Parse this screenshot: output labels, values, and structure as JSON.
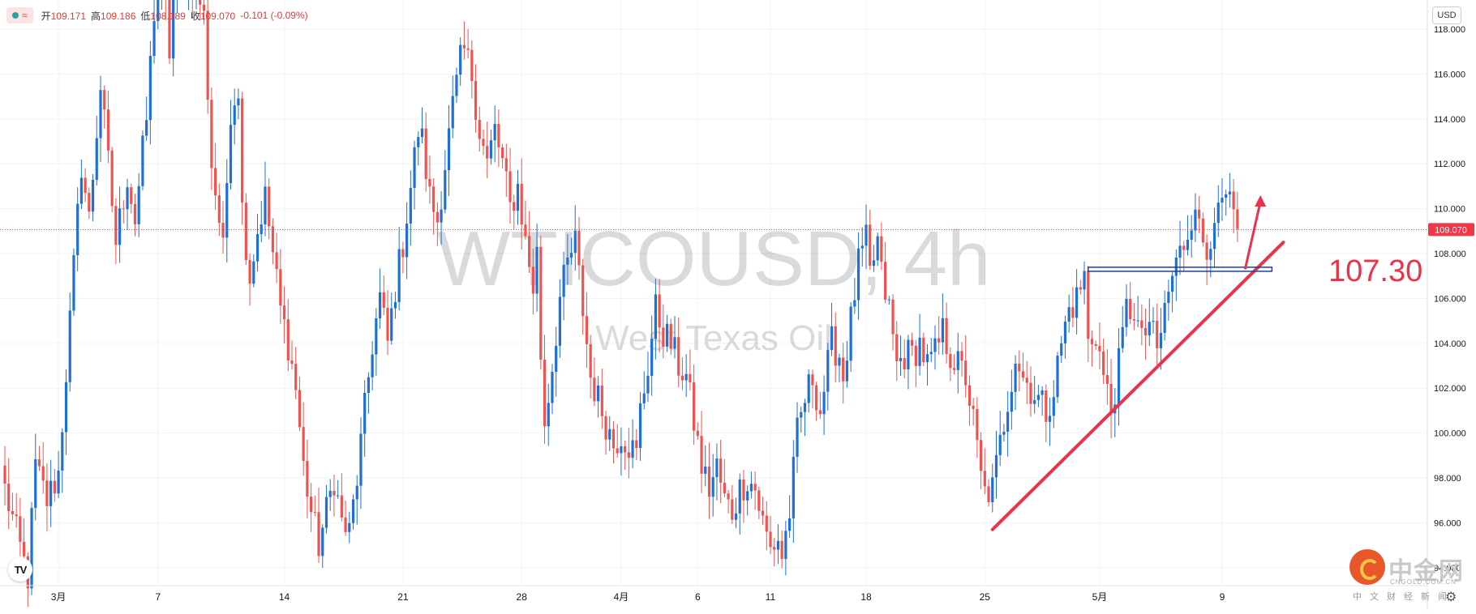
{
  "legend": {
    "open_label": "开",
    "open": "109.171",
    "high_label": "高",
    "high": "109.186",
    "low_label": "低",
    "low": "108.189",
    "close_label": "收",
    "close": "109.070",
    "change": "-0.101 (-0.09%)"
  },
  "currency": "USD",
  "watermark": {
    "symbol": "WTICOUSD, 4h",
    "name": "West Texas Oil"
  },
  "price_tag": "109.070",
  "annotation": {
    "level": "107.30"
  },
  "brand": {
    "name": "中金网",
    "domain": "CNGOLD.COM.CN",
    "tagline": "中文财经新闻"
  },
  "colors": {
    "up": "#1e6fd6",
    "down": "#ef5350",
    "trendline": "#e8334a",
    "level_line": "#1f3f99",
    "price_tag": "#f23645",
    "grid": "#f0f3fa"
  },
  "icons": {
    "toggle": "wave-icon",
    "logo": "tradingview-logo-icon",
    "settings": "gear-icon"
  },
  "chart_data": {
    "type": "candlestick",
    "title": "WTICOUSD, 4h",
    "subtitle": "West Texas Oil",
    "ylim": [
      93.2,
      119.3
    ],
    "y_ticks": [
      94,
      96,
      98,
      100,
      102,
      104,
      106,
      108,
      110,
      112,
      114,
      116,
      118
    ],
    "x_ticks": [
      {
        "label": "3月",
        "bar": 14
      },
      {
        "label": "7",
        "bar": 40
      },
      {
        "label": "14",
        "bar": 73
      },
      {
        "label": "21",
        "bar": 104
      },
      {
        "label": "28",
        "bar": 135
      },
      {
        "label": "4月",
        "bar": 161
      },
      {
        "label": "6",
        "bar": 181
      },
      {
        "label": "11",
        "bar": 200
      },
      {
        "label": "18",
        "bar": 225
      },
      {
        "label": "25",
        "bar": 256
      },
      {
        "label": "5月",
        "bar": 286
      },
      {
        "label": "9",
        "bar": 318
      }
    ],
    "last_price": 109.07,
    "support_level": 107.3,
    "trendline": [
      {
        "bar": 258,
        "price": 95.7
      },
      {
        "bar": 334,
        "price": 108.5
      }
    ],
    "level_line_bars": [
      283,
      331
    ],
    "projection_arrow": [
      {
        "bar": 324,
        "price": 107.3
      },
      {
        "bar": 328,
        "price": 110.6
      }
    ],
    "anchors": [
      [
        0,
        97.5
      ],
      [
        3,
        95.5
      ],
      [
        6,
        93.6
      ],
      [
        8,
        98.5
      ],
      [
        11,
        97.0
      ],
      [
        14,
        98.2
      ],
      [
        17,
        105.0
      ],
      [
        20,
        112.0
      ],
      [
        22,
        109.5
      ],
      [
        25,
        115.5
      ],
      [
        27,
        112.0
      ],
      [
        29,
        108.5
      ],
      [
        32,
        111.5
      ],
      [
        34,
        109.5
      ],
      [
        37,
        114.0
      ],
      [
        39,
        118.8
      ],
      [
        41,
        121.0
      ],
      [
        43,
        117.0
      ],
      [
        45,
        121.5
      ],
      [
        47,
        120.5
      ],
      [
        50,
        120.0
      ],
      [
        52,
        118.5
      ],
      [
        54,
        112.0
      ],
      [
        56,
        109.5
      ],
      [
        57,
        108.0
      ],
      [
        59,
        114.5
      ],
      [
        61,
        115.5
      ],
      [
        62,
        110.0
      ],
      [
        64,
        107.0
      ],
      [
        66,
        109.0
      ],
      [
        68,
        110.5
      ],
      [
        70,
        108.0
      ],
      [
        72,
        105.5
      ],
      [
        74,
        104.0
      ],
      [
        76,
        102.0
      ],
      [
        78,
        98.5
      ],
      [
        80,
        96.5
      ],
      [
        82,
        95.0
      ],
      [
        84,
        96.5
      ],
      [
        86,
        98.0
      ],
      [
        88,
        96.0
      ],
      [
        90,
        95.5
      ],
      [
        92,
        98.0
      ],
      [
        94,
        101.0
      ],
      [
        96,
        104.0
      ],
      [
        98,
        106.0
      ],
      [
        100,
        104.0
      ],
      [
        102,
        106.5
      ],
      [
        104,
        108.5
      ],
      [
        106,
        111.0
      ],
      [
        108,
        113.5
      ],
      [
        109,
        113.0
      ],
      [
        111,
        110.5
      ],
      [
        113,
        109.5
      ],
      [
        115,
        112.0
      ],
      [
        117,
        114.5
      ],
      [
        119,
        116.5
      ],
      [
        120,
        117.0
      ],
      [
        122,
        116.0
      ],
      [
        124,
        113.5
      ],
      [
        126,
        112.0
      ],
      [
        128,
        113.5
      ],
      [
        130,
        112.0
      ],
      [
        132,
        110.0
      ],
      [
        134,
        111.0
      ],
      [
        136,
        108.5
      ],
      [
        138,
        106.5
      ],
      [
        139,
        108.0
      ],
      [
        140,
        103.5
      ],
      [
        141,
        100.5
      ],
      [
        143,
        103.0
      ],
      [
        145,
        106.0
      ],
      [
        147,
        107.5
      ],
      [
        149,
        108.5
      ],
      [
        151,
        105.5
      ],
      [
        153,
        102.5
      ],
      [
        155,
        101.5
      ],
      [
        157,
        100.5
      ],
      [
        159,
        99.5
      ],
      [
        161,
        100.0
      ],
      [
        163,
        99.5
      ],
      [
        165,
        99.0
      ],
      [
        166,
        101.0
      ],
      [
        168,
        103.0
      ],
      [
        170,
        105.5
      ],
      [
        172,
        104.5
      ],
      [
        174,
        104.0
      ],
      [
        176,
        103.0
      ],
      [
        178,
        102.5
      ],
      [
        180,
        100.5
      ],
      [
        182,
        98.5
      ],
      [
        184,
        97.5
      ],
      [
        186,
        98.5
      ],
      [
        188,
        97.0
      ],
      [
        190,
        96.5
      ],
      [
        192,
        97.5
      ],
      [
        194,
        98.0
      ],
      [
        196,
        97.5
      ],
      [
        198,
        96.0
      ],
      [
        200,
        94.8
      ],
      [
        202,
        95.3
      ],
      [
        203,
        94.5
      ],
      [
        205,
        96.5
      ],
      [
        207,
        100.0
      ],
      [
        209,
        101.5
      ],
      [
        211,
        102.5
      ],
      [
        213,
        101.0
      ],
      [
        215,
        103.0
      ],
      [
        216,
        104.0
      ],
      [
        218,
        103.5
      ],
      [
        219,
        102.5
      ],
      [
        221,
        105.0
      ],
      [
        223,
        107.5
      ],
      [
        225,
        108.5
      ],
      [
        226,
        107.0
      ],
      [
        228,
        108.5
      ],
      [
        229,
        107.0
      ],
      [
        231,
        105.5
      ],
      [
        233,
        103.0
      ],
      [
        235,
        103.5
      ],
      [
        237,
        103.5
      ],
      [
        239,
        104.0
      ],
      [
        241,
        103.0
      ],
      [
        243,
        103.5
      ],
      [
        245,
        104.5
      ],
      [
        247,
        103.5
      ],
      [
        249,
        103.0
      ],
      [
        251,
        102.5
      ],
      [
        253,
        100.5
      ],
      [
        255,
        98.0
      ],
      [
        256,
        97.3
      ],
      [
        258,
        97.5
      ],
      [
        260,
        99.5
      ],
      [
        262,
        101.5
      ],
      [
        264,
        103.5
      ],
      [
        266,
        102.5
      ],
      [
        268,
        102.0
      ],
      [
        270,
        101.5
      ],
      [
        272,
        101.0
      ],
      [
        274,
        102.0
      ],
      [
        276,
        104.0
      ],
      [
        278,
        105.5
      ],
      [
        280,
        106.0
      ],
      [
        282,
        107.0
      ],
      [
        283,
        104.0
      ],
      [
        285,
        104.5
      ],
      [
        287,
        102.5
      ],
      [
        289,
        101.0
      ],
      [
        291,
        103.0
      ],
      [
        293,
        105.5
      ],
      [
        295,
        105.5
      ],
      [
        297,
        104.0
      ],
      [
        299,
        105.0
      ],
      [
        301,
        103.5
      ],
      [
        303,
        105.5
      ],
      [
        305,
        107.0
      ],
      [
        307,
        108.0
      ],
      [
        309,
        109.0
      ],
      [
        311,
        110.5
      ],
      [
        312,
        109.0
      ],
      [
        314,
        108.0
      ],
      [
        316,
        110.0
      ],
      [
        317,
        109.5
      ],
      [
        319,
        110.5
      ],
      [
        321,
        109.5
      ],
      [
        322,
        109.1
      ]
    ]
  }
}
